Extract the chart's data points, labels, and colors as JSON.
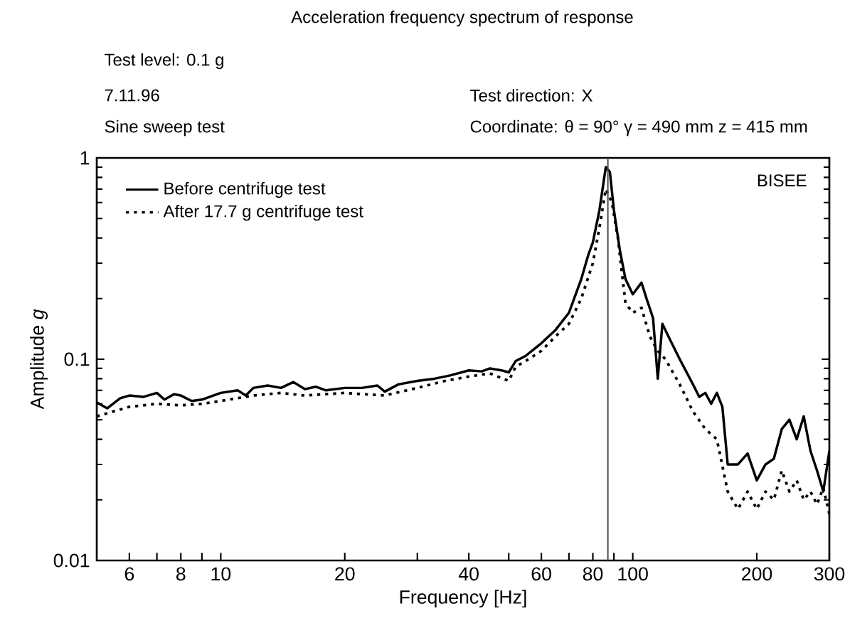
{
  "chart_data": {
    "type": "line",
    "title": "Acceleration frequency spectrum of response",
    "xlabel": "Frequency [Hz]",
    "ylabel": "Amplitude *g*",
    "annotations": [
      "Test level: 0.1 g",
      "7.11.96",
      "Sine sweep test",
      "Test direction: X",
      "Coordinate: θ = 90° γ = 490 mm z = 415 mm",
      "BISEE"
    ],
    "log": "xy",
    "xlim": [
      5,
      300
    ],
    "ylim": [
      0.01,
      1
    ],
    "xticks": [
      6,
      {
        "value": 7,
        "label": null
      },
      8,
      {
        "value": 9,
        "label": null
      },
      10,
      20,
      {
        "value": 30,
        "label": null
      },
      40,
      {
        "value": 50,
        "label": null
      },
      60,
      {
        "value": 70,
        "label": null
      },
      80,
      {
        "value": 90,
        "label": null
      },
      100,
      200,
      300
    ],
    "yticks": [
      0.01,
      0.1,
      1
    ],
    "grid": false,
    "legend": "top left",
    "marker": "none",
    "ref_lines": [
      {
        "axis": "x",
        "value": 87,
        "color": "#555555"
      }
    ],
    "series": [
      {
        "name": "Before centrifuge test",
        "color": "#000000",
        "line_style": "solid",
        "x": [
          5,
          5.3,
          5.7,
          6,
          6.5,
          7,
          7.3,
          7.7,
          8,
          8.5,
          9,
          10,
          11,
          11.5,
          12,
          13,
          14,
          15,
          16,
          17,
          18,
          20,
          22,
          24,
          25,
          27,
          30,
          33,
          36,
          40,
          43,
          45,
          48,
          50,
          52,
          55,
          60,
          65,
          70,
          75,
          78,
          80,
          83,
          86,
          88,
          90,
          93,
          96,
          100,
          105,
          108,
          112,
          115,
          118,
          122,
          130,
          140,
          145,
          150,
          155,
          160,
          165,
          170,
          180,
          190,
          200,
          210,
          220,
          230,
          240,
          250,
          260,
          270,
          280,
          290,
          300
        ],
        "values": [
          0.061,
          0.057,
          0.064,
          0.066,
          0.065,
          0.068,
          0.063,
          0.067,
          0.066,
          0.062,
          0.063,
          0.068,
          0.07,
          0.066,
          0.072,
          0.074,
          0.072,
          0.077,
          0.071,
          0.073,
          0.07,
          0.072,
          0.072,
          0.074,
          0.069,
          0.075,
          0.078,
          0.08,
          0.083,
          0.088,
          0.087,
          0.09,
          0.088,
          0.086,
          0.098,
          0.104,
          0.12,
          0.14,
          0.17,
          0.25,
          0.33,
          0.38,
          0.55,
          0.9,
          0.85,
          0.55,
          0.35,
          0.25,
          0.21,
          0.24,
          0.2,
          0.16,
          0.08,
          0.15,
          0.13,
          0.1,
          0.075,
          0.065,
          0.068,
          0.06,
          0.068,
          0.058,
          0.03,
          0.03,
          0.034,
          0.025,
          0.03,
          0.032,
          0.045,
          0.05,
          0.04,
          0.052,
          0.035,
          0.028,
          0.022,
          0.035
        ]
      },
      {
        "name": "After 17.7  g centrifuge test",
        "color": "#000000",
        "line_style": "dotted",
        "x": [
          5,
          6,
          7,
          8,
          9,
          10,
          12,
          14,
          16,
          18,
          20,
          25,
          30,
          35,
          40,
          45,
          50,
          52,
          55,
          60,
          65,
          70,
          75,
          80,
          83,
          86,
          89,
          92,
          96,
          100,
          105,
          110,
          115,
          120,
          130,
          140,
          150,
          160,
          170,
          180,
          190,
          200,
          210,
          220,
          230,
          240,
          250,
          260,
          270,
          280,
          290,
          300
        ],
        "values": [
          0.052,
          0.058,
          0.06,
          0.059,
          0.06,
          0.062,
          0.066,
          0.068,
          0.066,
          0.067,
          0.068,
          0.066,
          0.072,
          0.078,
          0.082,
          0.085,
          0.078,
          0.092,
          0.098,
          0.11,
          0.13,
          0.15,
          0.2,
          0.3,
          0.45,
          0.7,
          0.6,
          0.4,
          0.19,
          0.17,
          0.18,
          0.13,
          0.11,
          0.1,
          0.075,
          0.055,
          0.045,
          0.04,
          0.022,
          0.018,
          0.022,
          0.018,
          0.022,
          0.02,
          0.028,
          0.022,
          0.025,
          0.02,
          0.022,
          0.019,
          0.023,
          0.017
        ]
      }
    ]
  }
}
